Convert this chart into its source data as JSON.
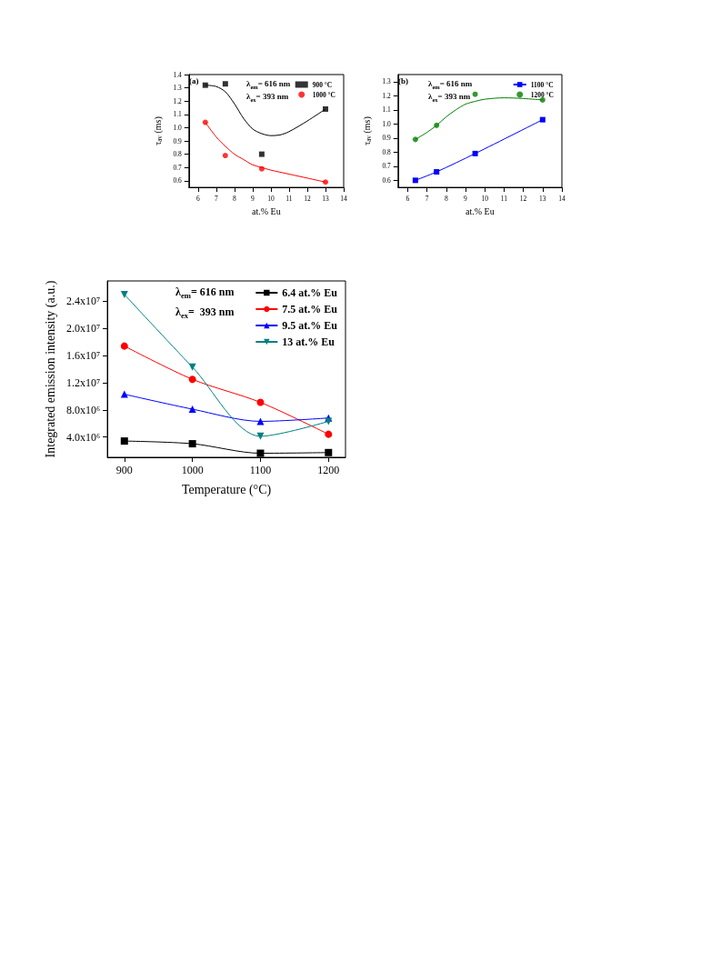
{
  "chart_data": [
    {
      "type": "line",
      "xlabel": "at.% Eu",
      "ylabel": "τ$_{av}$ (ms)",
      "annotations": [
        "(a)",
        "λ$_{em}$= 616 nm",
        "λ$_{ex}$= 393 nm"
      ],
      "legend": "top right",
      "xlim": [
        5.5,
        14
      ],
      "xticks": [
        6,
        7,
        8,
        9,
        10,
        11,
        12,
        13,
        14
      ],
      "ylim": [
        0.55,
        1.4
      ],
      "yticks": [
        0.6,
        0.7,
        0.8,
        0.9,
        {
          "value": 1.0,
          "label": "1.0"
        },
        1.1,
        1.2,
        1.3,
        1.4
      ],
      "series": [
        {
          "type": "scatter",
          "name": "900 °C",
          "color": "#000000",
          "marker": "square",
          "x": [
            6.4,
            7.5,
            9.5,
            13
          ],
          "values": [
            1.32,
            1.33,
            0.8,
            1.14
          ]
        },
        {
          "type": "scatter",
          "name": "1000 °C",
          "color": "#ff0000",
          "marker": "circle",
          "x": [
            6.4,
            7.5,
            9.5,
            13
          ],
          "values": [
            1.04,
            0.79,
            0.69,
            0.59
          ]
        },
        {
          "color": "#000000",
          "marker": "none",
          "x": [
            6.4,
            7,
            7.5,
            8,
            8.5,
            9,
            9.5,
            10,
            10.5,
            11,
            12,
            13
          ],
          "values": [
            1.32,
            1.31,
            1.27,
            1.18,
            1.07,
            0.99,
            0.955,
            0.94,
            0.945,
            0.97,
            1.05,
            1.14
          ]
        },
        {
          "color": "#ff0000",
          "marker": "none",
          "x": [
            6.4,
            7,
            7.5,
            8,
            8.5,
            9,
            9.5,
            10,
            11,
            12,
            13
          ],
          "values": [
            1.04,
            0.93,
            0.86,
            0.8,
            0.76,
            0.72,
            0.7,
            0.68,
            0.65,
            0.62,
            0.59
          ]
        }
      ]
    },
    {
      "type": "line",
      "xlabel": "at.% Eu",
      "ylabel": "τ$_{av}$ (ms)",
      "annotations": [
        "(b)",
        "λ$_{em}$= 616 nm",
        "λ$_{ex}$= 393 nm"
      ],
      "legend": "top right",
      "xlim": [
        5.5,
        14
      ],
      "xticks": [
        6,
        7,
        8,
        9,
        10,
        11,
        12,
        13,
        14
      ],
      "ylim": [
        0.55,
        1.35
      ],
      "yticks": [
        0.6,
        0.7,
        0.8,
        0.9,
        {
          "value": 1.0,
          "label": "1.0"
        },
        1.1,
        1.2,
        1.3
      ],
      "series": [
        {
          "name": "1100 °C",
          "color": "#0000ff",
          "marker": "square",
          "x": [
            6.4,
            7.5,
            9.5,
            13
          ],
          "values": [
            0.6,
            0.66,
            0.79,
            1.03
          ]
        },
        {
          "type": "scatter",
          "name": "1200 °C",
          "color": "#008000",
          "marker": "circle",
          "x": [
            6.4,
            7.5,
            9.5,
            13
          ],
          "values": [
            0.89,
            0.99,
            1.21,
            1.17
          ]
        },
        {
          "color": "#008000",
          "marker": "none",
          "x": [
            6.4,
            7,
            7.5,
            8,
            8.5,
            9,
            9.5,
            10,
            11,
            12,
            13
          ],
          "values": [
            0.89,
            0.94,
            0.99,
            1.05,
            1.1,
            1.14,
            1.16,
            1.175,
            1.185,
            1.18,
            1.17
          ]
        }
      ]
    },
    {
      "type": "line",
      "xlabel": "Temperature (°C)",
      "ylabel": "Integrated emission intensity (a.u.)",
      "annotations": [
        "λ$_{em}$= 616 nm",
        "λ$_{ex}$=  393 nm"
      ],
      "legend": "top right",
      "x": [
        900,
        1000,
        1100,
        1200
      ],
      "xlim": [
        875,
        1225
      ],
      "xticks": [
        900,
        1000,
        1100,
        1200
      ],
      "ylim": [
        1000000,
        27000000
      ],
      "yticks": [
        {
          "value": 4000000,
          "label": "4.0x10⁶"
        },
        {
          "value": 8000000,
          "label": "8.0x10⁶"
        },
        {
          "value": 12000000,
          "label": "1.2x10⁷"
        },
        {
          "value": 16000000,
          "label": "1.6x10⁷"
        },
        {
          "value": 20000000,
          "label": "2.0x10⁷"
        },
        {
          "value": 24000000,
          "label": "2.4x10⁷"
        }
      ],
      "series": [
        {
          "name": "6.4 at.% Eu",
          "color": "#000000",
          "marker": "square",
          "values": [
            3400000,
            3000000,
            1600000,
            1700000
          ]
        },
        {
          "name": "7.5 at.% Eu",
          "color": "#ff0000",
          "marker": "circle",
          "values": [
            17400000,
            12500000,
            9100000,
            4400000
          ]
        },
        {
          "name": "9.5 at.% Eu",
          "color": "#0000ff",
          "marker": "triangle",
          "values": [
            10300000,
            8100000,
            6300000,
            6800000
          ]
        },
        {
          "name": "13 at.% Eu",
          "color": "#008080",
          "marker": "triangle-down",
          "values": [
            25000000,
            14300000,
            4100000,
            6300000
          ]
        }
      ]
    }
  ]
}
